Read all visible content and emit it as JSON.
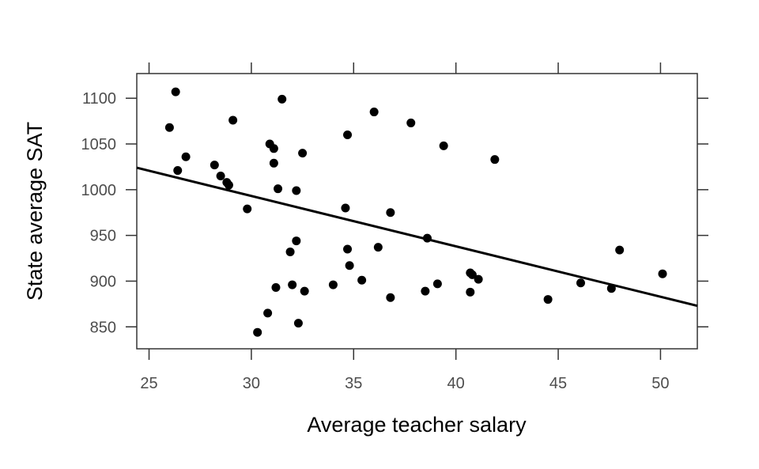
{
  "chart_data": {
    "type": "scatter",
    "title": "",
    "xlabel": "Average teacher salary",
    "ylabel": "State average SAT",
    "xlim": [
      24.4,
      51.8
    ],
    "ylim": [
      826,
      1127
    ],
    "x_ticks": [
      25,
      30,
      35,
      40,
      45,
      50
    ],
    "y_ticks": [
      850,
      900,
      950,
      1000,
      1050,
      1100
    ],
    "grid": false,
    "legend": "none",
    "point_color": "#000000",
    "line_color": "#000000",
    "points": [
      {
        "x": 26.0,
        "y": 1068
      },
      {
        "x": 26.3,
        "y": 1107
      },
      {
        "x": 26.4,
        "y": 1021
      },
      {
        "x": 26.8,
        "y": 1036
      },
      {
        "x": 28.2,
        "y": 1027
      },
      {
        "x": 28.5,
        "y": 1015
      },
      {
        "x": 28.8,
        "y": 1008
      },
      {
        "x": 28.9,
        "y": 1005
      },
      {
        "x": 29.1,
        "y": 1076
      },
      {
        "x": 29.8,
        "y": 979
      },
      {
        "x": 30.3,
        "y": 844
      },
      {
        "x": 30.8,
        "y": 865
      },
      {
        "x": 30.9,
        "y": 1050
      },
      {
        "x": 31.1,
        "y": 1045
      },
      {
        "x": 31.1,
        "y": 1029
      },
      {
        "x": 31.2,
        "y": 893
      },
      {
        "x": 31.3,
        "y": 1001
      },
      {
        "x": 31.5,
        "y": 1099
      },
      {
        "x": 31.9,
        "y": 932
      },
      {
        "x": 32.0,
        "y": 896
      },
      {
        "x": 32.2,
        "y": 944
      },
      {
        "x": 32.2,
        "y": 999
      },
      {
        "x": 32.3,
        "y": 854
      },
      {
        "x": 32.5,
        "y": 1040
      },
      {
        "x": 32.6,
        "y": 889
      },
      {
        "x": 34.0,
        "y": 896
      },
      {
        "x": 34.6,
        "y": 980
      },
      {
        "x": 34.7,
        "y": 1060
      },
      {
        "x": 34.7,
        "y": 935
      },
      {
        "x": 34.8,
        "y": 917
      },
      {
        "x": 35.4,
        "y": 901
      },
      {
        "x": 36.0,
        "y": 1085
      },
      {
        "x": 36.2,
        "y": 937
      },
      {
        "x": 36.8,
        "y": 975
      },
      {
        "x": 36.8,
        "y": 882
      },
      {
        "x": 37.8,
        "y": 1073
      },
      {
        "x": 38.5,
        "y": 889
      },
      {
        "x": 38.6,
        "y": 947
      },
      {
        "x": 39.1,
        "y": 897
      },
      {
        "x": 39.4,
        "y": 1048
      },
      {
        "x": 40.7,
        "y": 909
      },
      {
        "x": 40.7,
        "y": 888
      },
      {
        "x": 40.8,
        "y": 907
      },
      {
        "x": 41.1,
        "y": 902
      },
      {
        "x": 41.9,
        "y": 1033
      },
      {
        "x": 44.5,
        "y": 880
      },
      {
        "x": 46.1,
        "y": 898
      },
      {
        "x": 47.6,
        "y": 892
      },
      {
        "x": 48.0,
        "y": 934
      },
      {
        "x": 50.1,
        "y": 908
      }
    ],
    "fit_line": {
      "x1": 24.4,
      "y1": 1024,
      "x2": 51.8,
      "y2": 873
    }
  }
}
